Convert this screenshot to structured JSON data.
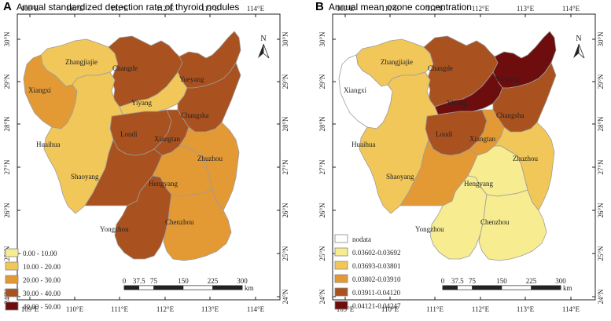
{
  "panels": [
    {
      "letter": "A",
      "title": "Annual standardized detection rate of thyroid nodules",
      "lon_ticks": [
        "109°E",
        "110°E",
        "111°E",
        "112°E",
        "113°E",
        "114°E"
      ],
      "lat_ticks": [
        "30°N",
        "29°N",
        "28°N",
        "27°N",
        "26°N",
        "25°N",
        "24°N"
      ],
      "north": "N",
      "legend": [
        {
          "label": "0.00 - 10.00",
          "color": "#f7ec8f"
        },
        {
          "label": "10.00 - 20.00",
          "color": "#f2c759"
        },
        {
          "label": "20.00 - 30.00",
          "color": "#e39a35"
        },
        {
          "label": "30.00 - 40.00",
          "color": "#a9521f"
        },
        {
          "label": "40.00 - 50.00",
          "color": "#6e0d0e"
        }
      ],
      "scale": {
        "labels": [
          "0",
          "37.5",
          "75",
          "150",
          "225",
          "300"
        ],
        "unit": "km"
      },
      "regions": [
        {
          "name": "Zhangjiajie",
          "color": "#f2c759"
        },
        {
          "name": "Changde",
          "color": "#a9521f"
        },
        {
          "name": "Yueyang",
          "color": "#a9521f"
        },
        {
          "name": "Xiangxi",
          "color": "#e39a35"
        },
        {
          "name": "Yiyang",
          "color": "#f2c759"
        },
        {
          "name": "Changsha",
          "color": "#a9521f"
        },
        {
          "name": "Loudi",
          "color": "#a9521f"
        },
        {
          "name": "Xiangtan",
          "color": "#a9521f"
        },
        {
          "name": "Huaihua",
          "color": "#f2c759"
        },
        {
          "name": "Zhuzhou",
          "color": "#e39a35"
        },
        {
          "name": "Shaoyang",
          "color": "#a9521f"
        },
        {
          "name": "Hengyang",
          "color": "#e39a35"
        },
        {
          "name": "Yongzhou",
          "color": "#a9521f"
        },
        {
          "name": "Chenzhou",
          "color": "#e39a35"
        }
      ]
    },
    {
      "letter": "B",
      "title": "Annual mean ozone concentration",
      "lon_ticks": [
        "109°E",
        "110°E",
        "111°E",
        "112°E",
        "113°E",
        "114°E"
      ],
      "lat_ticks": [
        "30°N",
        "29°N",
        "28°N",
        "27°N",
        "26°N",
        "25°N",
        "24°N"
      ],
      "north": "N",
      "legend": [
        {
          "label": "nodata",
          "color": "#ffffff"
        },
        {
          "label": "0.03602-0.03692",
          "color": "#f7ec8f"
        },
        {
          "label": "0.03693-0.03801",
          "color": "#f2c759"
        },
        {
          "label": "0.03802-0.03910",
          "color": "#e39a35"
        },
        {
          "label": "0.03911-0.04120",
          "color": "#a9521f"
        },
        {
          "label": "0.04121-0.04247",
          "color": "#6e0d0e"
        }
      ],
      "scale": {
        "labels": [
          "0",
          "37.5",
          "75",
          "150",
          "225",
          "300"
        ],
        "unit": "km"
      },
      "regions": [
        {
          "name": "Zhangjiajie",
          "color": "#f2c759"
        },
        {
          "name": "Changde",
          "color": "#a9521f"
        },
        {
          "name": "Yueyang",
          "color": "#6e0d0e"
        },
        {
          "name": "Xiangxi",
          "color": "#ffffff"
        },
        {
          "name": "Yiyang",
          "color": "#6e0d0e"
        },
        {
          "name": "Changsha",
          "color": "#a9521f"
        },
        {
          "name": "Loudi",
          "color": "#a9521f"
        },
        {
          "name": "Xiangtan",
          "color": "#e39a35"
        },
        {
          "name": "Huaihua",
          "color": "#f2c759"
        },
        {
          "name": "Zhuzhou",
          "color": "#f2c759"
        },
        {
          "name": "Shaoyang",
          "color": "#e39a35"
        },
        {
          "name": "Hengyang",
          "color": "#f7ec8f"
        },
        {
          "name": "Yongzhou",
          "color": "#f7ec8f"
        },
        {
          "name": "Chenzhou",
          "color": "#f7ec8f"
        }
      ]
    }
  ]
}
